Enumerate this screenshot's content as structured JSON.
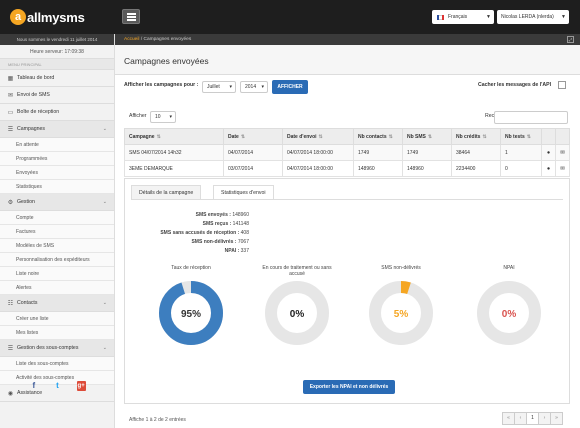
{
  "header": {
    "logo_text": "allmysms",
    "logo_mark": "a",
    "language": "Français",
    "user": "Nicolas LERDA (nlerda)"
  },
  "sidebar": {
    "date_text": "Nous sommes le vendredi 11 juillet 2014",
    "server_time": "Heure serveur: 17:09:38",
    "menu_title": "MENU PRINCIPAL",
    "items": [
      {
        "label": "Tableau de bord",
        "icon": "dashboard-icon"
      },
      {
        "label": "Envoi de SMS",
        "icon": "send-icon"
      },
      {
        "label": "Boîte de réception",
        "icon": "inbox-icon"
      },
      {
        "label": "Campagnes",
        "icon": "list-icon"
      },
      {
        "label": "Gestion",
        "icon": "gear-icon"
      },
      {
        "label": "Contacts",
        "icon": "contacts-icon"
      },
      {
        "label": "Gestion des sous-comptes",
        "icon": "subaccounts-icon"
      },
      {
        "label": "Assistance",
        "icon": "help-icon"
      }
    ],
    "campagnes_sub": [
      "En attente",
      "Programmées",
      "Envoyées",
      "Statistiques"
    ],
    "gestion_sub": [
      "Compte",
      "Factures",
      "Modèles de SMS",
      "Personnalisation des expéditeurs",
      "Liste noire",
      "Alertes"
    ],
    "contacts_sub": [
      "Créer une liste",
      "Mes listes"
    ],
    "souscomptes_sub": [
      "Liste des sous-comptes",
      "Activité des sous-comptes"
    ]
  },
  "breadcrumb": {
    "home": "Accueil",
    "separator": "/",
    "current": "Campagnes envoyées"
  },
  "page": {
    "title": "Campagnes envoyées"
  },
  "filter": {
    "label": "Afficher les campagnes pour :",
    "month": "Juillet",
    "year": "2014",
    "button": "AFFICHER",
    "hide_api_label": "Cacher les messages de l'API"
  },
  "table_controls": {
    "show_label": "Afficher",
    "page_size": "10",
    "search_label": "Rechercher"
  },
  "table": {
    "headers": [
      "Campagne",
      "Date",
      "Date d'envoi",
      "Nb contacts",
      "Nb SMS",
      "Nb crédits",
      "Nb tests"
    ],
    "rows": [
      [
        "SMS 04/07/2014 14h32",
        "04/07/2014",
        "04/07/2014 18:00:00",
        "1749",
        "1749",
        "38464",
        "1"
      ],
      [
        "3EME DEMARQUE",
        "03/07/2014",
        "04/07/2014 18:00:00",
        "148960",
        "148960",
        "2234400",
        "0"
      ]
    ]
  },
  "details": {
    "tab1": "Détails de la campagne",
    "tab2": "Statistiques d'envoi",
    "stats": [
      {
        "label": "SMS envoyés :",
        "value": "148960"
      },
      {
        "label": "SMS reçus :",
        "value": "141148"
      },
      {
        "label": "SMS sans accusés de réception :",
        "value": "408"
      },
      {
        "label": "SMS non-délivrés :",
        "value": "7067"
      },
      {
        "label": "NPAI :",
        "value": "337"
      }
    ],
    "donuts": [
      {
        "label": "Taux de réception",
        "value": "95%",
        "fraction": 0.95,
        "color": "#3d7ebf",
        "text_color": "#333"
      },
      {
        "label": "En cours de traitement ou sans accusé",
        "value": "0%",
        "fraction": 0.0,
        "color": "#999999",
        "text_color": "#222"
      },
      {
        "label": "SMS non-délivrés",
        "value": "5%",
        "fraction": 0.05,
        "color": "#f5a623",
        "text_color": "#f5a623"
      },
      {
        "label": "NPAI",
        "value": "0%",
        "fraction": 0.0,
        "color": "#d9534f",
        "text_color": "#d9534f"
      }
    ],
    "export_button": "Exporter les NPAI et non délivrés"
  },
  "footer": {
    "info": "Affiche 1 à 2 de 2 entrées",
    "current_page": "1"
  },
  "colors": {
    "accent": "#f5a623",
    "primary_button": "#2a6bb5",
    "donut_track": "#e6e6e6"
  }
}
